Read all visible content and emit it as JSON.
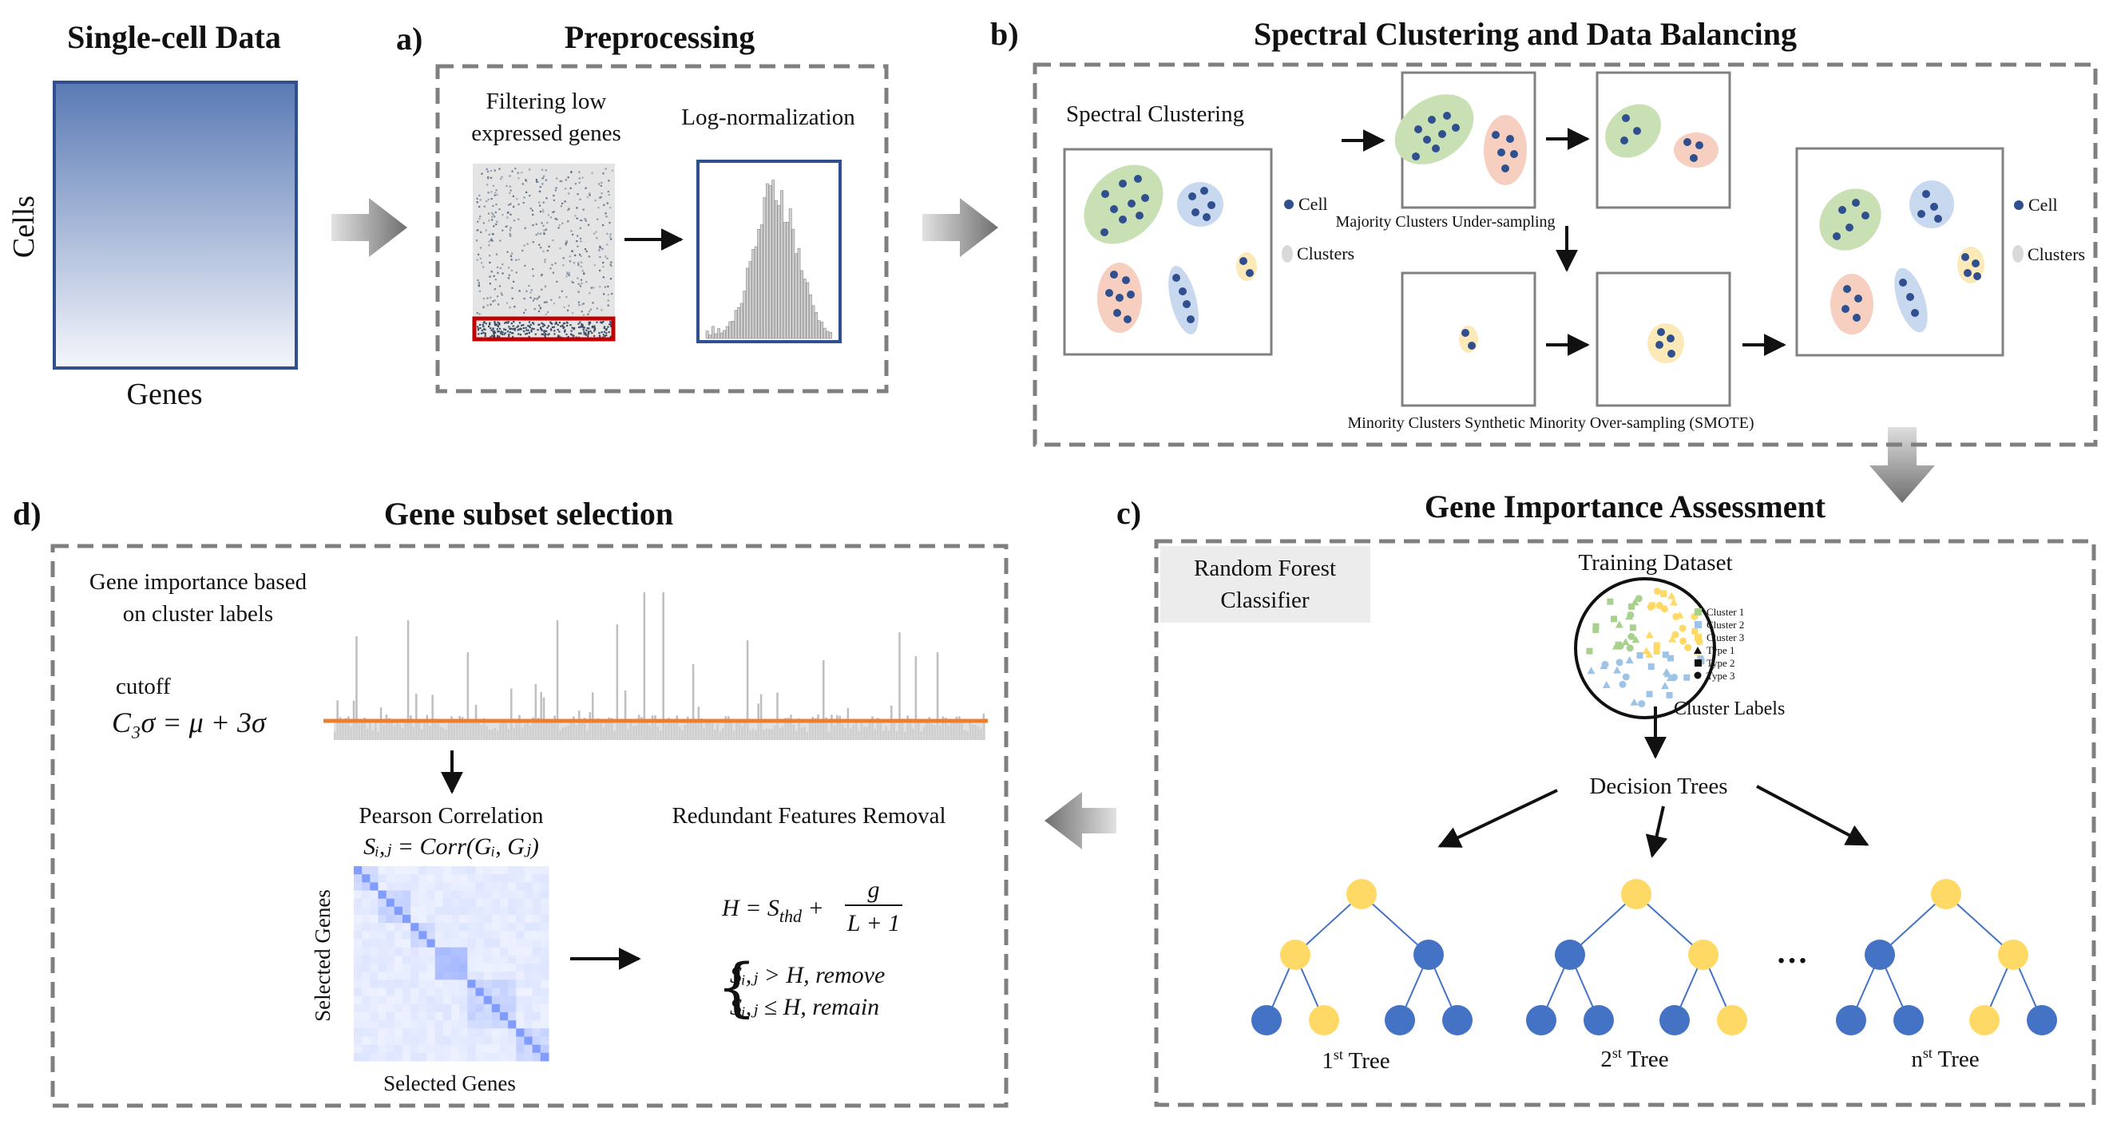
{
  "titles": {
    "single_cell": "Single-cell Data",
    "preprocessing": "Preprocessing",
    "spectral": "Spectral Clustering and Data Balancing",
    "gene_subset": "Gene subset selection",
    "importance": "Gene Importance Assessment"
  },
  "panel_labels": {
    "a": "a)",
    "b": "b)",
    "c": "c)",
    "d": "d)"
  },
  "single_cell": {
    "y_axis": "Cells",
    "x_axis": "Genes"
  },
  "preprocessing": {
    "filter_line1": "Filtering low",
    "filter_line2": "expressed genes",
    "lognorm": "Log-normalization"
  },
  "spectral": {
    "spectral_clustering": "Spectral Clustering",
    "legend_cell": "Cell",
    "legend_clusters": "Clusters",
    "legend_cell_right": "Cell",
    "legend_clusters_right": "Clusters",
    "majority": "Majority Clusters Under-sampling",
    "minority": "Minority Clusters Synthetic Minority Over-sampling (SMOTE)"
  },
  "importance": {
    "rf_line1": "Random Forest",
    "rf_line2": "Classifier",
    "training_dataset": "Training Dataset",
    "cluster_labels": "Cluster Labels",
    "decision_trees": "Decision Trees",
    "legend": [
      "Cluster 1",
      "Cluster 2",
      "Cluster 3",
      "Type 1",
      "Type 2",
      "Type 3"
    ],
    "tree1": "1",
    "tree1_sup": "st",
    "tree2": "2",
    "tree2_sup": "st",
    "treen": "n",
    "treen_sup": "st",
    "tree_suffix": " Tree",
    "ellipsis": "…"
  },
  "gene_subset": {
    "importance_line1": "Gene importance based",
    "importance_line2": "on cluster labels",
    "cutoff": "cutoff",
    "cutoff_formula": "C₃σ = μ + 3σ",
    "pearson": "Pearson Correlation",
    "pearson_formula": "Sᵢ,ⱼ = Corr(Gᵢ, Gⱼ)",
    "selected_genes_x": "Selected Genes",
    "selected_genes_y": "Selected Genes",
    "redundant": "Redundant Features Removal",
    "h_formula_left": "H = S",
    "h_formula_sub": "thd",
    "h_formula_frac_num": "g",
    "h_formula_frac_den": "L + 1",
    "rule_remove": "Sᵢ,ⱼ > H, remove",
    "rule_remain": "Sᵢ,ⱼ ≤ H, remain"
  },
  "colors": {
    "dot_blue": "#2f4f8f",
    "tree_blue": "#4472c4",
    "tree_yellow": "#ffd966",
    "cutoff_orange": "#ed7d31",
    "dash_gray": "#7f7f7f",
    "green_cluster": "#c9e0b4",
    "blue_cluster": "#c7d8ef",
    "peach_cluster": "#f6cfc0",
    "yellow_cluster": "#fbe9b7",
    "heatmap_blue": "#4f86c6",
    "rf_box": "#ececec"
  }
}
